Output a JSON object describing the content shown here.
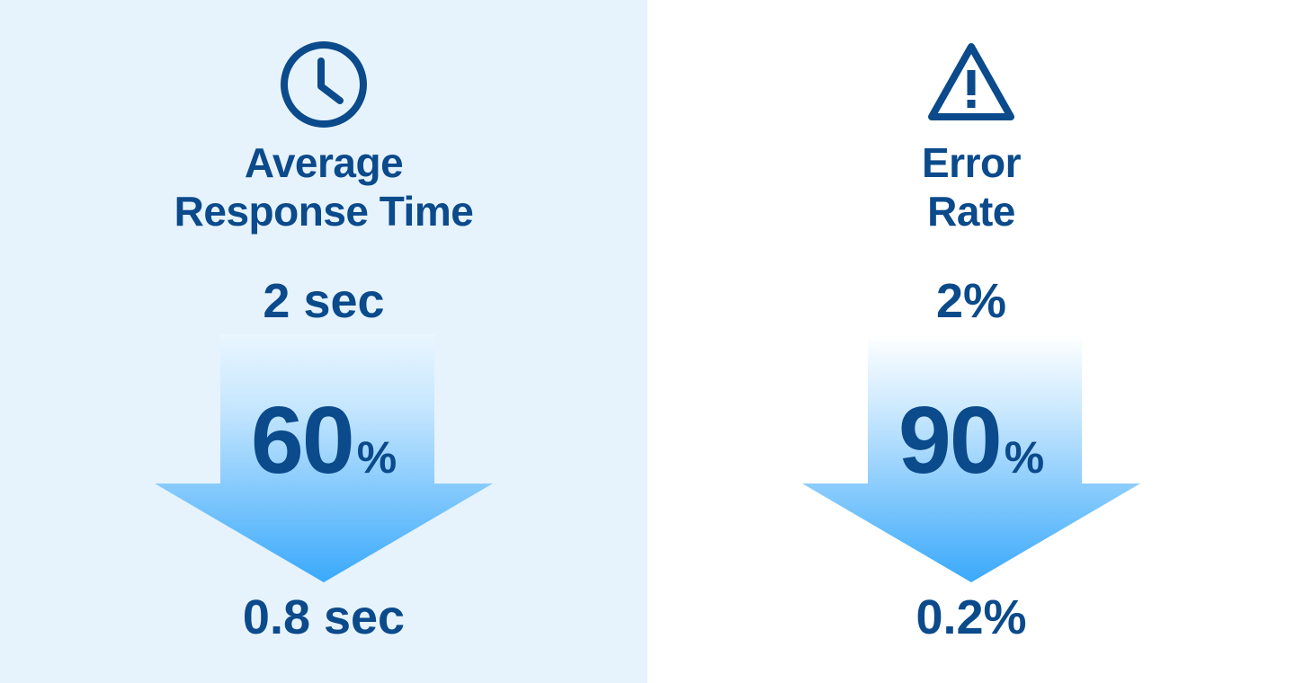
{
  "colors": {
    "left_panel_background": "#e6f3fd",
    "right_panel_background": "#ffffff",
    "text_primary": "#0b4a8b",
    "arrow_gradient_top": "#ffffff",
    "arrow_gradient_bottom": "#3aa9fb"
  },
  "metrics": [
    {
      "icon": "clock-icon",
      "title_line1": "Average",
      "title_line2": "Response Time",
      "before": "2 sec",
      "change_number": "60",
      "change_unit": "%",
      "after": "0.8 sec"
    },
    {
      "icon": "warning-icon",
      "title_line1": "Error",
      "title_line2": "Rate",
      "before": "2%",
      "change_number": "90",
      "change_unit": "%",
      "after": "0.2%"
    }
  ]
}
